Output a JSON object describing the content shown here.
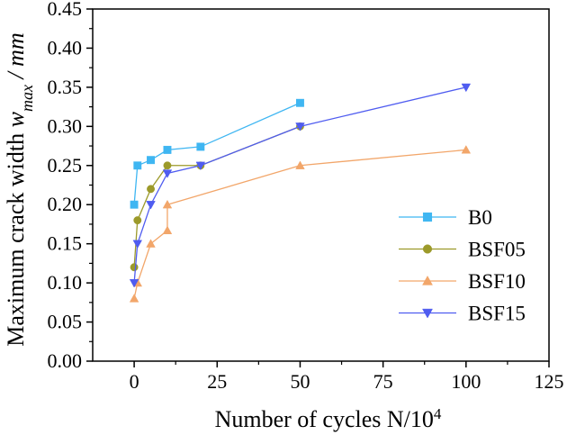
{
  "chart_data": {
    "type": "line",
    "title": "",
    "xlabel": "Number of cycles  N/10",
    "xlabel_sup": "4",
    "ylabel_prefix": "Maximum crack width ",
    "ylabel_var": "w",
    "ylabel_sub": "max",
    "ylabel_suffix": " / mm",
    "xlim": [
      -12.5,
      125
    ],
    "ylim": [
      0,
      0.45
    ],
    "xticks": [
      0,
      25,
      50,
      75,
      100,
      125
    ],
    "yticks": [
      0.0,
      0.05,
      0.1,
      0.15,
      0.2,
      0.25,
      0.3,
      0.35,
      0.4,
      0.45
    ],
    "legend_position": "bottom-right",
    "series": [
      {
        "name": "B0",
        "color": "#3fb6f2",
        "marker": "square",
        "x": [
          0,
          1,
          5,
          10,
          20,
          50
        ],
        "y": [
          0.2,
          0.25,
          0.257,
          0.27,
          0.274,
          0.33
        ]
      },
      {
        "name": "BSF05",
        "color": "#9c9a2a",
        "marker": "circle",
        "x": [
          0,
          1,
          5,
          10,
          20,
          50
        ],
        "y": [
          0.12,
          0.18,
          0.22,
          0.25,
          0.25,
          0.3
        ]
      },
      {
        "name": "BSF10",
        "color": "#f2a66a",
        "marker": "triangle-up",
        "x": [
          0,
          1,
          5,
          10,
          10,
          50,
          100
        ],
        "y": [
          0.08,
          0.1,
          0.15,
          0.167,
          0.2,
          0.25,
          0.27
        ]
      },
      {
        "name": "BSF15",
        "color": "#4f5cf0",
        "marker": "triangle-down",
        "x": [
          0,
          1,
          5,
          10,
          20,
          50,
          100
        ],
        "y": [
          0.1,
          0.15,
          0.2,
          0.24,
          0.25,
          0.3,
          0.35
        ]
      }
    ]
  }
}
